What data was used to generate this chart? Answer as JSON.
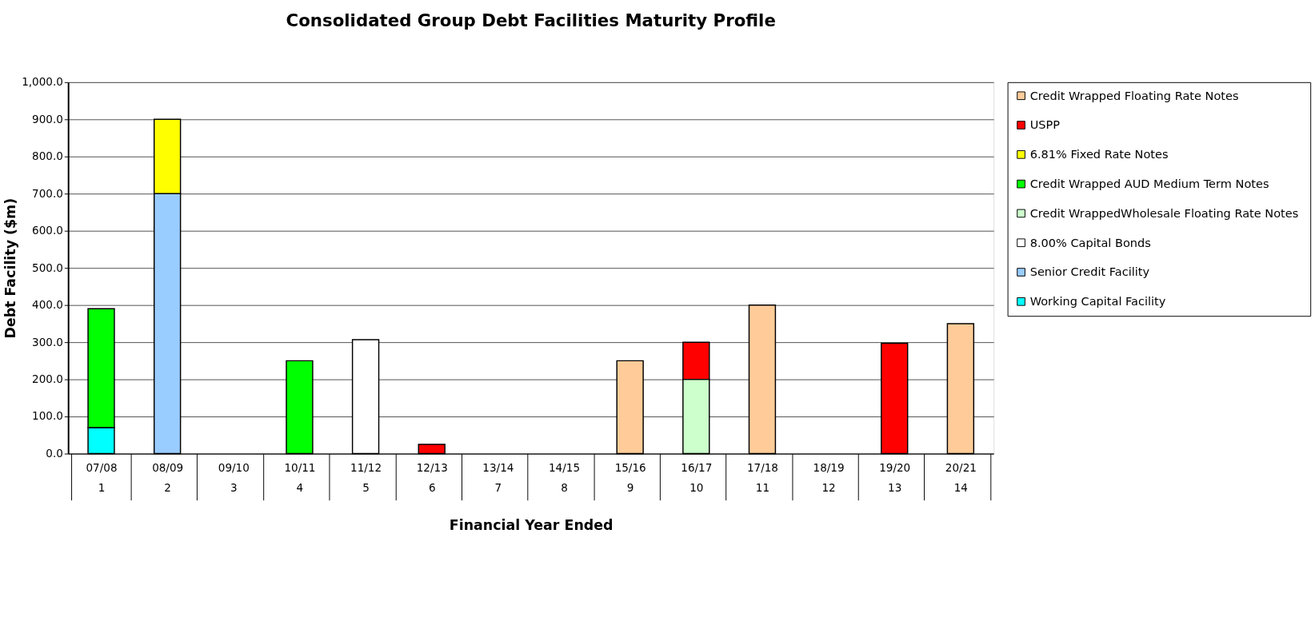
{
  "chart_data": {
    "type": "bar",
    "title": "Consolidated Group Debt Facilities Maturity Profile",
    "xlabel": "Financial Year Ended",
    "ylabel": "Debt Facility ($m)",
    "categories": [
      "07/08\n1",
      "08/09\n2",
      "09/10\n3",
      "10/11\n4",
      "11/12\n5",
      "12/13\n6",
      "13/14\n7",
      "14/15\n8",
      "15/16\n9",
      "16/17\n10",
      "17/18\n11",
      "18/19\n12",
      "19/20\n13",
      "20/21\n14"
    ],
    "stacked": true,
    "series": [
      {
        "name": "Working Capital Facility",
        "color": "#00ffff",
        "values": [
          70,
          null,
          null,
          null,
          null,
          null,
          null,
          null,
          null,
          null,
          null,
          null,
          null,
          null
        ]
      },
      {
        "name": "Senior Credit Facility",
        "color": "#99ccff",
        "values": [
          null,
          700,
          null,
          null,
          null,
          null,
          null,
          null,
          null,
          null,
          null,
          null,
          null,
          null
        ]
      },
      {
        "name": "8.00%  Capital Bonds",
        "color": "#ffffff",
        "values": [
          null,
          null,
          null,
          null,
          307,
          null,
          null,
          null,
          null,
          null,
          null,
          null,
          null,
          null
        ]
      },
      {
        "name": "Credit WrappedWholesale Floating Rate  Notes",
        "color": "#ccffcc",
        "values": [
          null,
          null,
          null,
          null,
          null,
          null,
          null,
          null,
          null,
          200,
          null,
          null,
          null,
          null
        ]
      },
      {
        "name": "Credit Wrapped AUD Medium Term Notes",
        "color": "#00ff00",
        "values": [
          320,
          null,
          null,
          250,
          null,
          null,
          null,
          null,
          null,
          null,
          null,
          null,
          null,
          null
        ]
      },
      {
        "name": "6.81% Fixed Rate Notes",
        "color": "#ffff00",
        "values": [
          null,
          200,
          null,
          null,
          null,
          null,
          null,
          null,
          null,
          null,
          null,
          null,
          null,
          null
        ]
      },
      {
        "name": "USPP",
        "color": "#ff0000",
        "values": [
          null,
          null,
          null,
          null,
          null,
          25,
          null,
          null,
          null,
          100,
          null,
          null,
          297,
          null
        ]
      },
      {
        "name": "Credit Wrapped Floating Rate Notes",
        "color": "#ffcc99",
        "values": [
          null,
          null,
          null,
          null,
          null,
          null,
          null,
          null,
          250,
          null,
          400,
          null,
          null,
          350
        ]
      }
    ],
    "ylim": [
      0,
      1000
    ],
    "yticks": [
      {
        "value": 0,
        "label": "0.0"
      },
      {
        "value": 100,
        "label": "100.0"
      },
      {
        "value": 200,
        "label": "200.0"
      },
      {
        "value": 300,
        "label": "300.0"
      },
      {
        "value": 400,
        "label": "400.0"
      },
      {
        "value": 500,
        "label": "500.0"
      },
      {
        "value": 600,
        "label": "600.0"
      },
      {
        "value": 700,
        "label": "700.0"
      },
      {
        "value": 800,
        "label": "800.0"
      },
      {
        "value": 900,
        "label": "900.0"
      },
      {
        "value": 1000,
        "label": "1,000.0"
      }
    ],
    "grid": "y",
    "legend": "right"
  }
}
